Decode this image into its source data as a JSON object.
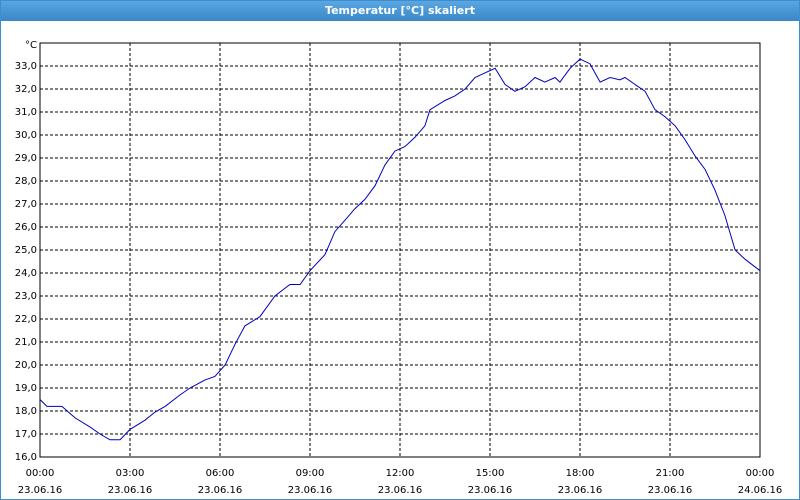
{
  "window_title": "Temperatur [°C] skaliert",
  "chart_data": {
    "type": "line",
    "y_unit": "°C",
    "x": [
      0,
      0.23,
      0.73,
      1.17,
      1.67,
      2,
      2.33,
      2.67,
      3,
      3.5,
      3.83,
      4.17,
      4.67,
      5,
      5.5,
      5.83,
      6.17,
      6.5,
      6.83,
      7.33,
      7.83,
      8.33,
      8.67,
      9,
      9.5,
      9.83,
      10.17,
      10.5,
      10.83,
      11.17,
      11.5,
      11.83,
      12.17,
      12.5,
      12.83,
      13,
      13.5,
      13.83,
      14.17,
      14.5,
      14.83,
      15.17,
      15.5,
      15.83,
      16.17,
      16.5,
      16.83,
      17.17,
      17.33,
      17.67,
      18,
      18.33,
      18.67,
      19,
      19.33,
      19.5,
      19.83,
      20.17,
      20.5,
      20.83,
      21.17,
      21.5,
      21.83,
      22.17,
      22.5,
      22.83,
      23.17,
      23.5,
      24
    ],
    "series": [
      {
        "name": "Temperatur",
        "color": "#0000c0",
        "values": [
          18.5,
          18.2,
          18.2,
          17.7,
          17.3,
          17.0,
          16.75,
          16.75,
          17.2,
          17.6,
          17.95,
          18.2,
          18.7,
          19.0,
          19.35,
          19.5,
          20.0,
          20.9,
          21.7,
          22.1,
          23.0,
          23.5,
          23.5,
          24.1,
          24.8,
          25.8,
          26.3,
          26.8,
          27.2,
          27.8,
          28.7,
          29.3,
          29.5,
          29.9,
          30.4,
          31.1,
          31.5,
          31.7,
          32.0,
          32.5,
          32.7,
          32.9,
          32.2,
          31.9,
          32.1,
          32.5,
          32.3,
          32.5,
          32.3,
          32.9,
          33.3,
          33.1,
          32.3,
          32.5,
          32.4,
          32.5,
          32.2,
          31.9,
          31.1,
          30.8,
          30.4,
          29.8,
          29.1,
          28.5,
          27.6,
          26.5,
          25.0,
          24.6,
          24.1
        ]
      }
    ],
    "xlim": [
      0,
      24
    ],
    "xticks": [
      {
        "value": 0,
        "label": "00:00",
        "date": "23.06.16"
      },
      {
        "value": 3,
        "label": "03:00",
        "date": "23.06.16"
      },
      {
        "value": 6,
        "label": "06:00",
        "date": "23.06.16"
      },
      {
        "value": 9,
        "label": "09:00",
        "date": "23.06.16"
      },
      {
        "value": 12,
        "label": "12:00",
        "date": "23.06.16"
      },
      {
        "value": 15,
        "label": "15:00",
        "date": "23.06.16"
      },
      {
        "value": 18,
        "label": "18:00",
        "date": "23.06.16"
      },
      {
        "value": 21,
        "label": "21:00",
        "date": "23.06.16"
      },
      {
        "value": 24,
        "label": "00:00",
        "date": "24.06.16"
      }
    ],
    "ylim": [
      16,
      34
    ],
    "yticks": [
      {
        "value": 16,
        "label": "16,0"
      },
      {
        "value": 17,
        "label": "17,0"
      },
      {
        "value": 18,
        "label": "18,0"
      },
      {
        "value": 19,
        "label": "19,0"
      },
      {
        "value": 20,
        "label": "20,0"
      },
      {
        "value": 21,
        "label": "21,0"
      },
      {
        "value": 22,
        "label": "22,0"
      },
      {
        "value": 23,
        "label": "23,0"
      },
      {
        "value": 24,
        "label": "24,0"
      },
      {
        "value": 25,
        "label": "25,0"
      },
      {
        "value": 26,
        "label": "26,0"
      },
      {
        "value": 27,
        "label": "27,0"
      },
      {
        "value": 28,
        "label": "28,0"
      },
      {
        "value": 29,
        "label": "29,0"
      },
      {
        "value": 30,
        "label": "30,0"
      },
      {
        "value": 31,
        "label": "31,0"
      },
      {
        "value": 32,
        "label": "32,0"
      },
      {
        "value": 33,
        "label": "33,0"
      }
    ],
    "grid": true
  }
}
